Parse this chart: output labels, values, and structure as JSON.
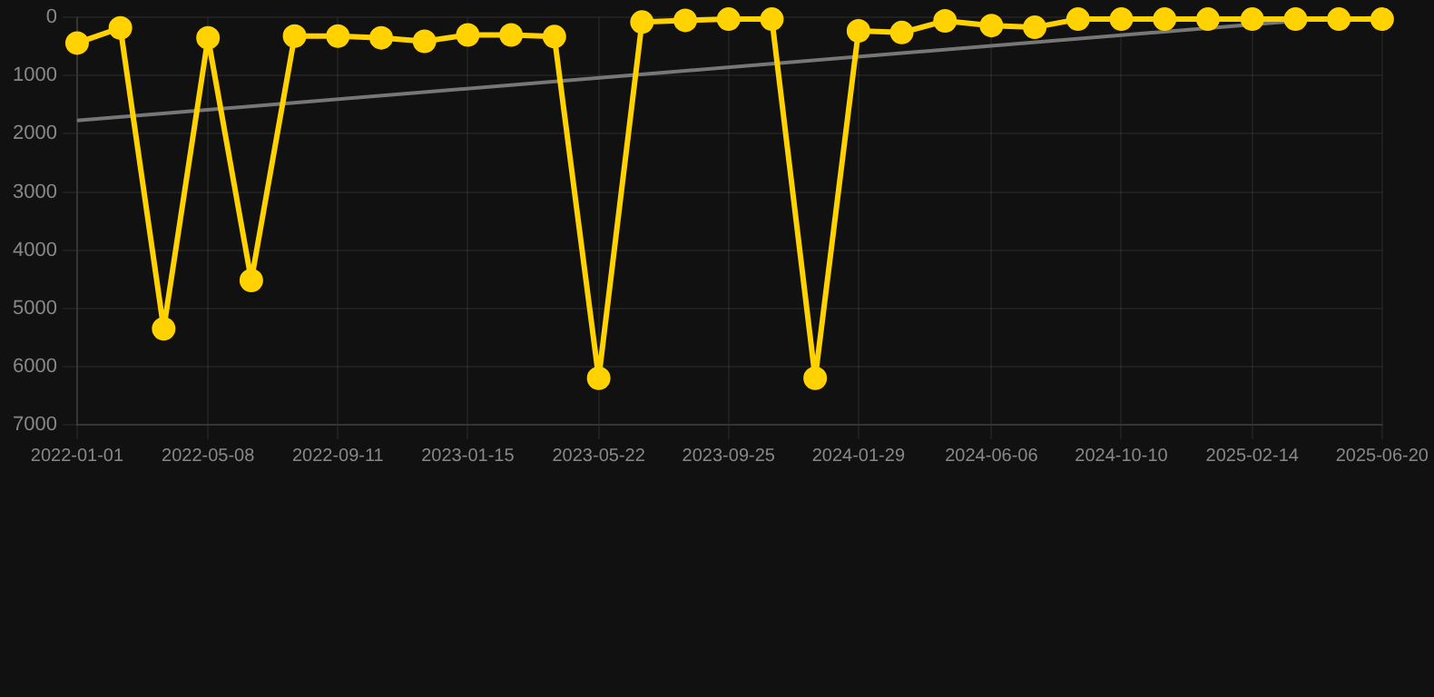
{
  "chart_data": {
    "type": "line",
    "x": [
      "2022-01-01",
      "2022-02-12",
      "2022-03-26",
      "2022-05-08",
      "2022-06-19",
      "2022-07-31",
      "2022-09-11",
      "2022-10-23",
      "2022-12-04",
      "2023-01-15",
      "2023-02-26",
      "2023-04-09",
      "2023-05-22",
      "2023-07-03",
      "2023-08-14",
      "2023-09-25",
      "2023-11-06",
      "2023-12-18",
      "2024-01-29",
      "2024-03-11",
      "2024-04-22",
      "2024-06-06",
      "2024-07-18",
      "2024-08-29",
      "2024-10-10",
      "2024-11-21",
      "2025-01-02",
      "2025-02-14",
      "2025-03-28",
      "2025-05-09",
      "2025-06-20"
    ],
    "series": [
      {
        "color": "#ffd200",
        "marker": "circle",
        "values": [
          440,
          180,
          5350,
          350,
          4520,
          320,
          320,
          350,
          410,
          300,
          300,
          330,
          6200,
          80,
          50,
          30,
          30,
          6200,
          230,
          260,
          60,
          140,
          170,
          30,
          30,
          30,
          30,
          30,
          30,
          30,
          30
        ]
      },
      {
        "color": "#777777",
        "marker": "none",
        "x": [
          "2022-01-01",
          "2025-05-09"
        ],
        "values": [
          1770,
          0
        ]
      }
    ],
    "xlim": [
      "2022-01-01",
      "2025-06-20"
    ],
    "xticks": [
      "2022-01-01",
      "2022-05-08",
      "2022-09-11",
      "2023-01-15",
      "2023-05-22",
      "2023-09-25",
      "2024-01-29",
      "2024-06-06",
      "2024-10-10",
      "2025-02-14",
      "2025-06-20"
    ],
    "ylim": [
      7000,
      0
    ],
    "yticks": [
      0,
      1000,
      2000,
      3000,
      4000,
      5000,
      6000,
      7000
    ],
    "grid": true,
    "legend": false
  }
}
